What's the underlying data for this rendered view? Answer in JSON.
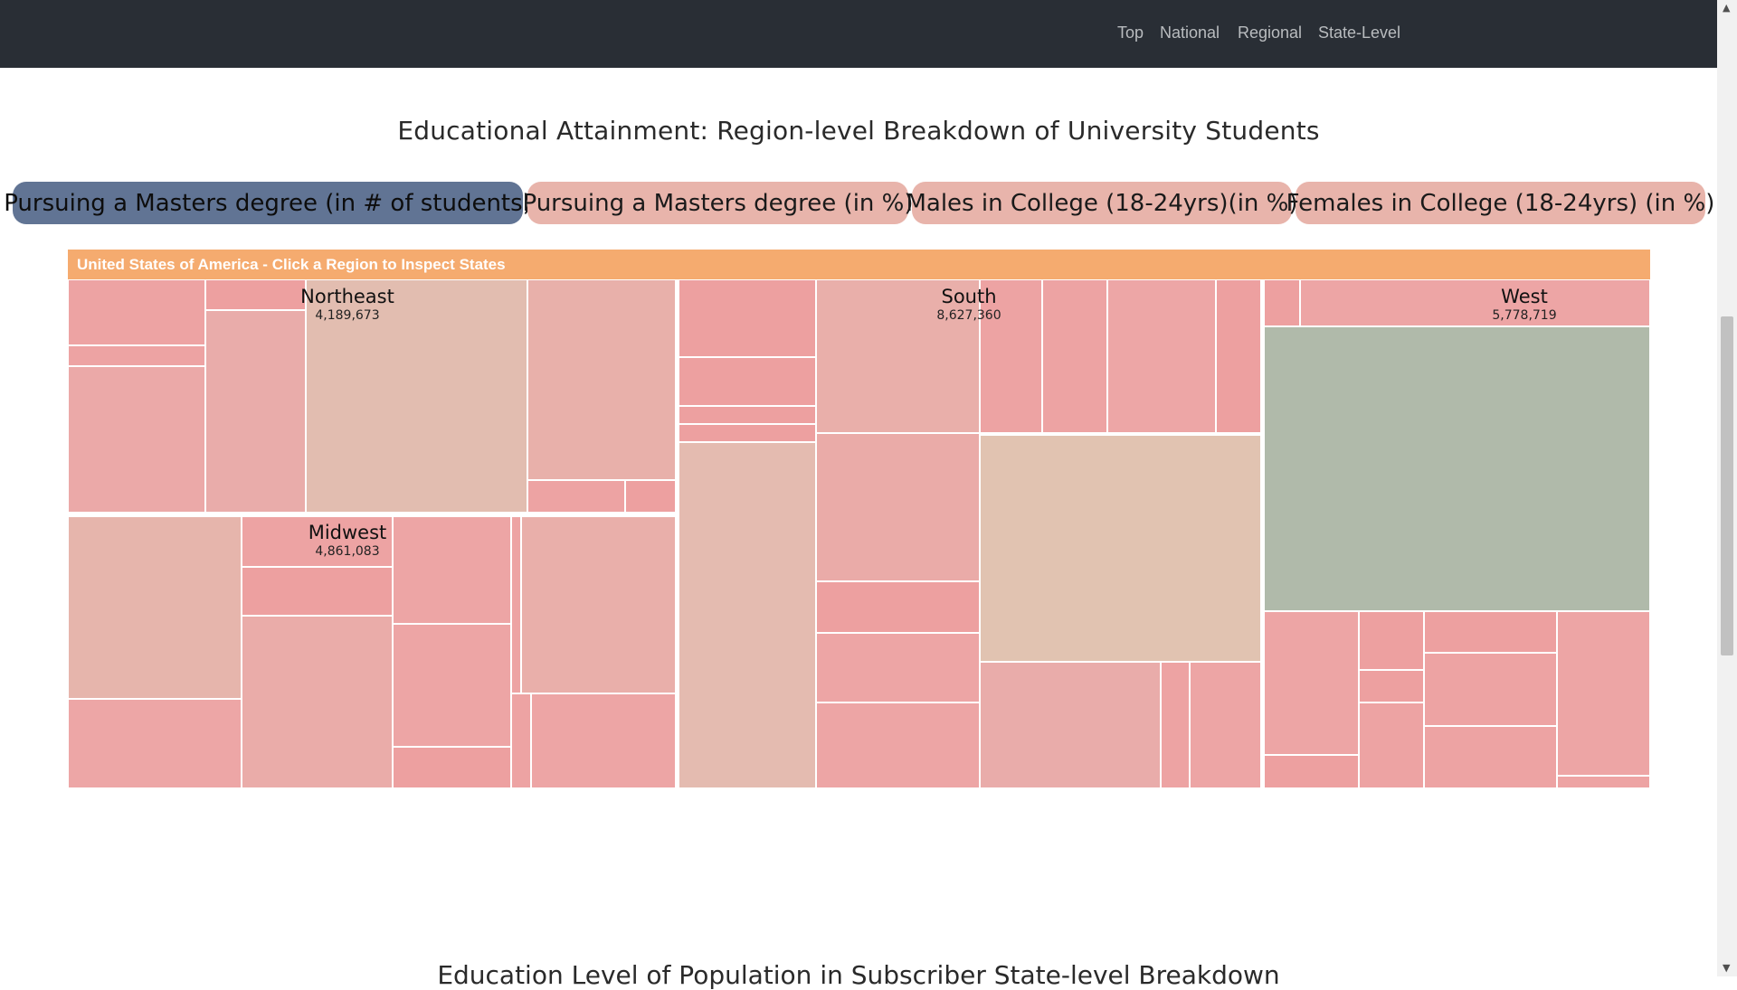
{
  "nav": {
    "links": [
      "Top",
      "National",
      "Regional",
      "State-Level"
    ]
  },
  "title": "Educational Attainment: Region-level Breakdown of University Students",
  "metric_buttons": [
    {
      "label": "Pursuing a Masters degree (in # of students)",
      "active": true
    },
    {
      "label": "Pursuing a Masters degree (in %)",
      "active": false
    },
    {
      "label": "Males in College (18-24yrs)(in %)",
      "active": false
    },
    {
      "label": "Females in College (18-24yrs) (in %)",
      "active": false
    }
  ],
  "treemap": {
    "header": "United States of America - Click a Region to Inspect States",
    "regions": [
      {
        "name": "Northeast",
        "value": "4,189,673"
      },
      {
        "name": "Midwest",
        "value": "4,861,083"
      },
      {
        "name": "South",
        "value": "8,627,360"
      },
      {
        "name": "West",
        "value": "5,778,719"
      }
    ]
  },
  "section2_title": "Education Level of Population in Subscriber State-level Breakdown",
  "colors": {
    "navbar": "#292e35",
    "active_button": "#617494",
    "inactive_button": "#e8b4ab",
    "header": "#f5ab6f"
  }
}
